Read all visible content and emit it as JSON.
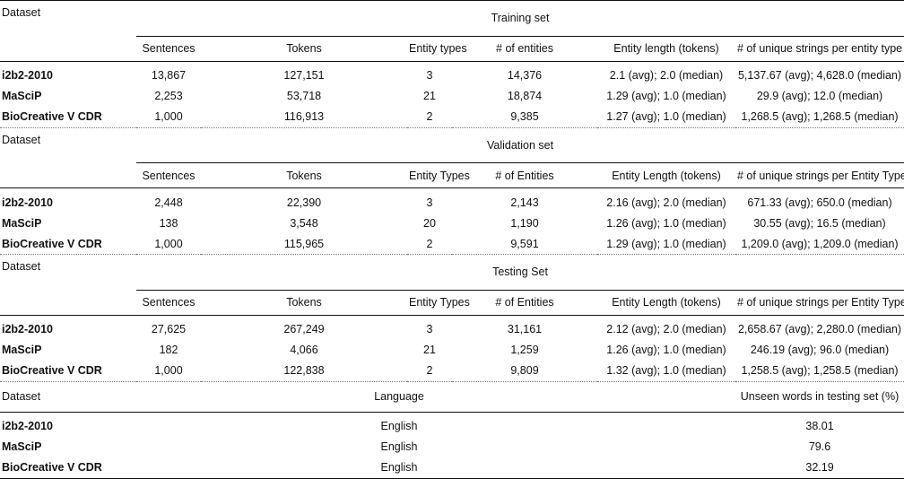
{
  "dataset_label": "Dataset",
  "sections": [
    {
      "title": "Training set",
      "columns": [
        "Sentences",
        "Tokens",
        "Entity types",
        "# of entities",
        "Entity length (tokens)",
        "# of unique strings per entity type"
      ],
      "rows": [
        {
          "name": "i2b2-2010",
          "cells": [
            "13,867",
            "127,151",
            "3",
            "14,376",
            "2.1 (avg); 2.0 (median)",
            "5,137.67 (avg); 4,628.0 (median)"
          ]
        },
        {
          "name": "MaSciP",
          "cells": [
            "2,253",
            "53,718",
            "21",
            "18,874",
            "1.29 (avg); 1.0 (median)",
            "29.9 (avg); 12.0 (median)"
          ]
        },
        {
          "name": "BioCreative V CDR",
          "cells": [
            "1,000",
            "116,913",
            "2",
            "9,385",
            "1.27 (avg); 1.0 (median)",
            "1,268.5 (avg); 1,268.5 (median)"
          ]
        }
      ]
    },
    {
      "title": "Validation set",
      "columns": [
        "Sentences",
        "Tokens",
        "Entity Types",
        "# of Entities",
        "Entity Length (tokens)",
        "# of unique strings per Entity Type"
      ],
      "rows": [
        {
          "name": "i2b2-2010",
          "cells": [
            "2,448",
            "22,390",
            "3",
            "2,143",
            "2.16 (avg); 2.0 (median)",
            "671.33 (avg); 650.0 (median)"
          ]
        },
        {
          "name": "MaSciP",
          "cells": [
            "138",
            "3,548",
            "20",
            "1,190",
            "1.26 (avg); 1.0 (median)",
            "30.55 (avg); 16.5 (median)"
          ]
        },
        {
          "name": "BioCreative V CDR",
          "cells": [
            "1,000",
            "115,965",
            "2",
            "9,591",
            "1.29 (avg); 1.0 (median)",
            "1,209.0 (avg); 1,209.0 (median)"
          ]
        }
      ]
    },
    {
      "title": "Testing Set",
      "columns": [
        "Sentences",
        "Tokens",
        "Entity Types",
        "# of Entities",
        "Entity Length (tokens)",
        "# of unique strings per Entity Type"
      ],
      "rows": [
        {
          "name": "i2b2-2010",
          "cells": [
            "27,625",
            "267,249",
            "3",
            "31,161",
            "2.12 (avg); 2.0 (median)",
            "2,658.67 (avg); 2,280.0 (median)"
          ]
        },
        {
          "name": "MaSciP",
          "cells": [
            "182",
            "4,066",
            "21",
            "1,259",
            "1.26 (avg); 1.0 (median)",
            "246.19 (avg); 96.0 (median)"
          ]
        },
        {
          "name": "BioCreative V CDR",
          "cells": [
            "1,000",
            "122,838",
            "2",
            "9,809",
            "1.32 (avg); 1.0 (median)",
            "1,258.5 (avg); 1,258.5 (median)"
          ]
        }
      ]
    }
  ],
  "language_section": {
    "language_label": "Language",
    "unseen_label": "Unseen words in testing set (%)",
    "rows": [
      {
        "name": "i2b2-2010",
        "language": "English",
        "unseen": "38.01"
      },
      {
        "name": "MaSciP",
        "language": "English",
        "unseen": "79.6"
      },
      {
        "name": "BioCreative V CDR",
        "language": "English",
        "unseen": "32.19"
      }
    ]
  }
}
